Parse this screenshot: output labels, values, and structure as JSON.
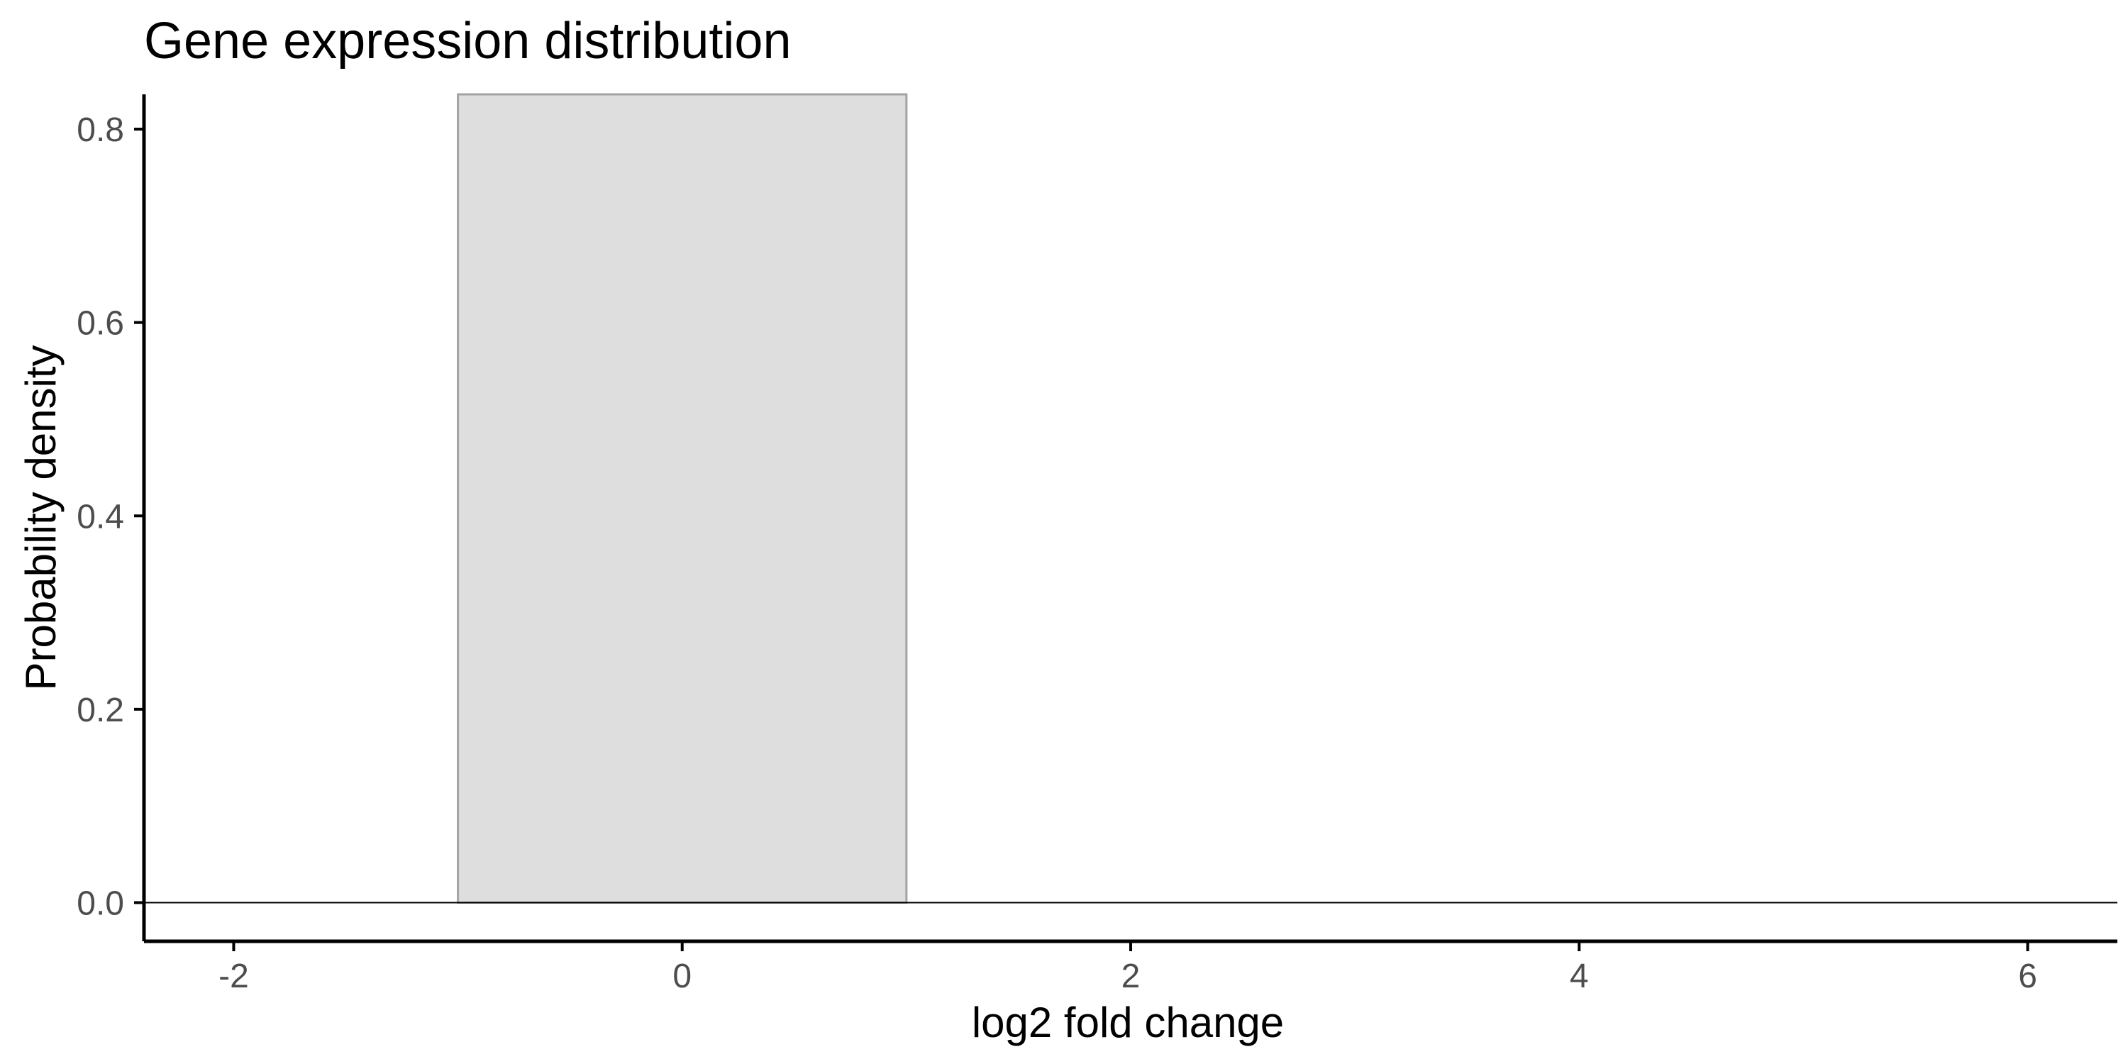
{
  "chart_data": {
    "type": "histogram",
    "title": "Gene expression distribution",
    "xlabel": "log2 fold change",
    "ylabel": "Probability density",
    "xlim": [
      -2.4,
      6.4
    ],
    "ylim": [
      -0.04,
      0.836
    ],
    "x_ticks": [
      -2,
      0,
      2,
      4,
      6
    ],
    "x_tick_labels": [
      "-2",
      "0",
      "2",
      "4",
      "6"
    ],
    "y_ticks": [
      0.0,
      0.2,
      0.4,
      0.6,
      0.8
    ],
    "y_tick_labels": [
      "0.0",
      "0.2",
      "0.4",
      "0.6",
      "0.8"
    ],
    "bins": [
      {
        "x0": -1,
        "x1": 1,
        "density": 0.836
      }
    ],
    "reference_line": {
      "y": 0
    },
    "grid": false,
    "colors": {
      "bar_fill": "#dedede",
      "bar_stroke": "#a3a3a3",
      "axis": "#000000",
      "tick_label": "#4d4d4d",
      "reference_line": "#000000"
    }
  }
}
